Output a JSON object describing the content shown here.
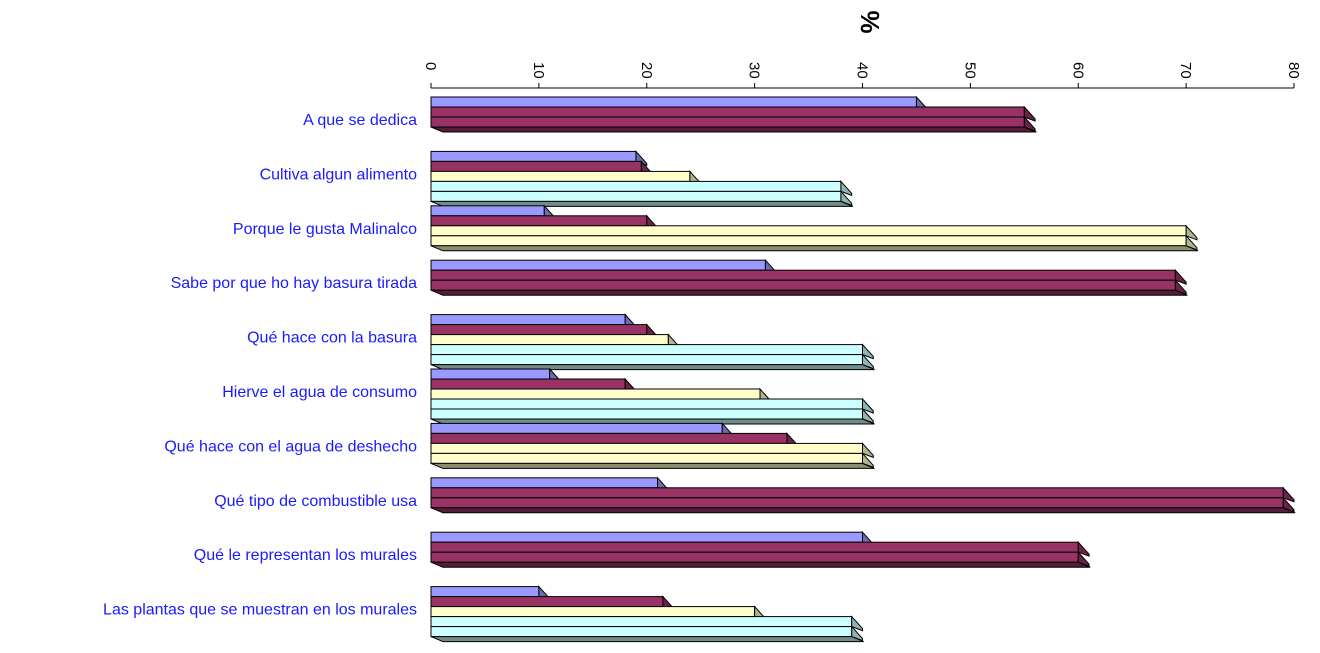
{
  "chart_data": {
    "type": "bar",
    "orientation": "horizontal",
    "three_d": true,
    "axis_title": "%",
    "xlim": [
      0,
      80
    ],
    "x_ticks": [
      "0",
      "10",
      "20",
      "30",
      "40",
      "50",
      "60",
      "70",
      "80"
    ],
    "categories": [
      "A que se dedica",
      "Cultiva algun alimento",
      "Porque le gusta Malinalco",
      "Sabe por que ho hay basura tirada",
      "Qué hace con la basura",
      "Hierve el agua de consumo",
      "Qué hace con el agua de deshecho",
      "Qué tipo de combustible usa",
      "Qué le representan los murales",
      "Las plantas que se muestran en los murales"
    ],
    "series_colors": [
      "#9999ff",
      "#993366",
      "#ffffcc",
      "#ccffff",
      "#808080"
    ],
    "bars": [
      [
        {
          "value": 45,
          "color": "#9999ff"
        },
        {
          "value": 55,
          "color": "#993366"
        },
        {
          "value": 55,
          "color": "#993366"
        }
      ],
      [
        {
          "value": 19,
          "color": "#9999ff"
        },
        {
          "value": 19.5,
          "color": "#993366"
        },
        {
          "value": 24,
          "color": "#ffffcc"
        },
        {
          "value": 38,
          "color": "#ccffff"
        },
        {
          "value": 38,
          "color": "#ccffff"
        }
      ],
      [
        {
          "value": 10.5,
          "color": "#9999ff"
        },
        {
          "value": 20,
          "color": "#993366"
        },
        {
          "value": 70,
          "color": "#ffffcc"
        },
        {
          "value": 70,
          "color": "#ffffcc"
        }
      ],
      [
        {
          "value": 31,
          "color": "#9999ff"
        },
        {
          "value": 69,
          "color": "#993366"
        },
        {
          "value": 69,
          "color": "#993366"
        }
      ],
      [
        {
          "value": 18,
          "color": "#9999ff"
        },
        {
          "value": 20,
          "color": "#993366"
        },
        {
          "value": 22,
          "color": "#ffffcc"
        },
        {
          "value": 40,
          "color": "#ccffff"
        },
        {
          "value": 40,
          "color": "#ccffff"
        }
      ],
      [
        {
          "value": 11,
          "color": "#9999ff"
        },
        {
          "value": 18,
          "color": "#993366"
        },
        {
          "value": 30.5,
          "color": "#ffffcc"
        },
        {
          "value": 40,
          "color": "#ccffff"
        },
        {
          "value": 40,
          "color": "#ccffff"
        }
      ],
      [
        {
          "value": 27,
          "color": "#9999ff"
        },
        {
          "value": 33,
          "color": "#993366"
        },
        {
          "value": 40,
          "color": "#ffffcc"
        },
        {
          "value": 40,
          "color": "#ffffcc"
        }
      ],
      [
        {
          "value": 21,
          "color": "#9999ff"
        },
        {
          "value": 79,
          "color": "#993366"
        },
        {
          "value": 79,
          "color": "#993366"
        }
      ],
      [
        {
          "value": 40,
          "color": "#9999ff"
        },
        {
          "value": 60,
          "color": "#993366"
        },
        {
          "value": 60,
          "color": "#993366"
        }
      ],
      [
        {
          "value": 10,
          "color": "#9999ff"
        },
        {
          "value": 21.5,
          "color": "#993366"
        },
        {
          "value": 30,
          "color": "#ffffcc"
        },
        {
          "value": 39,
          "color": "#ccffff"
        },
        {
          "value": 39,
          "color": "#ccffff"
        }
      ]
    ],
    "grid": false,
    "legend": "none"
  }
}
